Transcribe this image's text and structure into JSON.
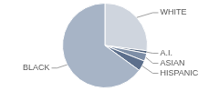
{
  "chart_data": {
    "type": "pie",
    "categories": [
      "WHITE",
      "A.I.",
      "ASIAN",
      "HISPANIC",
      "BLACK"
    ],
    "values": [
      27,
      1,
      3,
      4,
      65
    ],
    "colors": [
      "#cfd5de",
      "#4a5d78",
      "#7d8ea6",
      "#5c6f8c",
      "#a7b4c6"
    ]
  }
}
